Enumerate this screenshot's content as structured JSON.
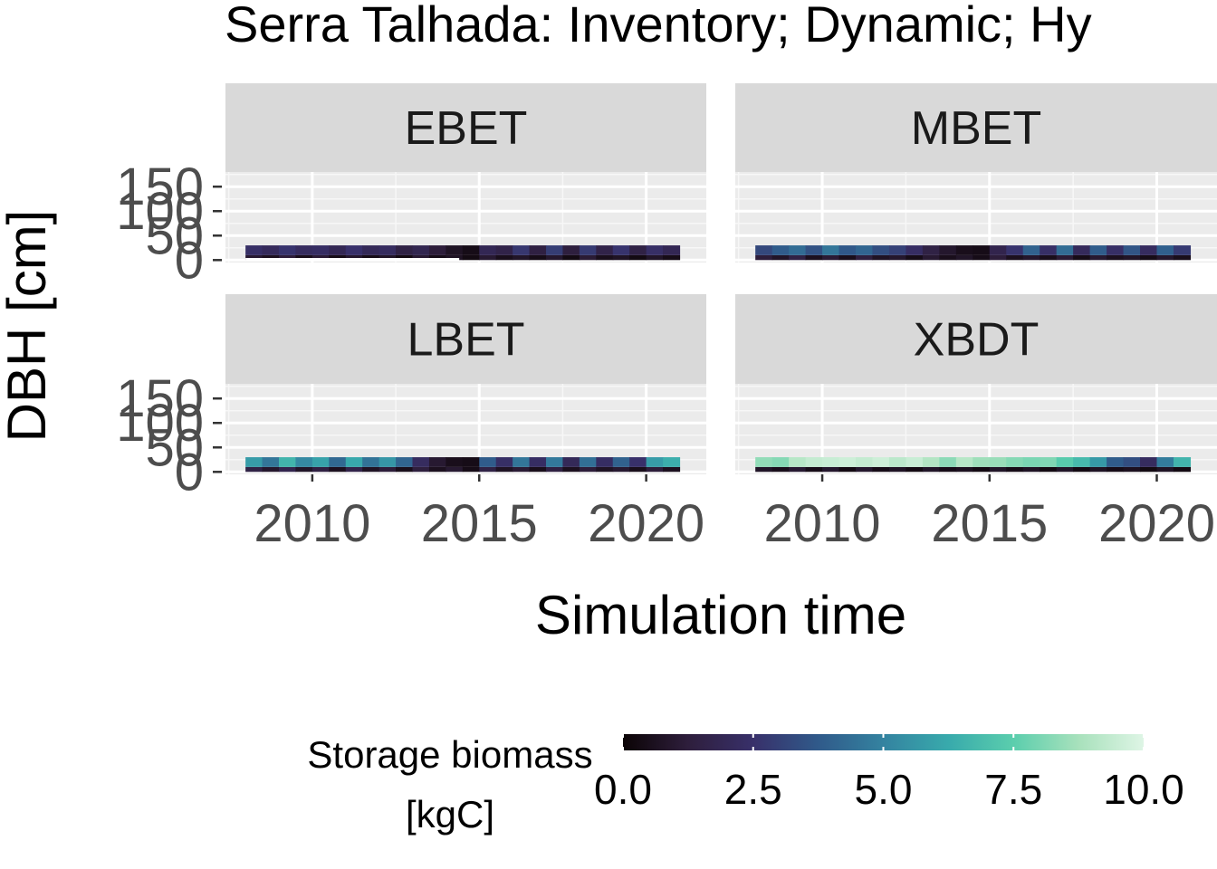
{
  "chart_data": {
    "type": "heatmap",
    "title": "Serra Talhada: Inventory; Dynamic; Hy",
    "xlabel": "Simulation time",
    "ylabel": "DBH [cm]",
    "xlim": [
      2007.4,
      2021.8
    ],
    "ylim": [
      -5,
      180
    ],
    "x_ticks": [
      2010,
      2015,
      2020
    ],
    "x_tick_labels": [
      "2010",
      "2015",
      "2020"
    ],
    "y_ticks": [
      0,
      50,
      100,
      150
    ],
    "y_tick_labels": [
      "0",
      "50",
      "100",
      "150"
    ],
    "grid": true,
    "color_scale": {
      "title_lines": [
        "Storage biomass",
        "[kgC]"
      ],
      "min": 0,
      "max": 10,
      "ticks": [
        0,
        2.5,
        5,
        7.5,
        10
      ],
      "tick_labels": [
        "0.0",
        "2.5",
        "5.0",
        "7.5",
        "10.0"
      ],
      "colors": [
        "#0b0405",
        "#2e1e3c",
        "#38306a",
        "#305a8a",
        "#3483a0",
        "#38aaac",
        "#5bcead",
        "#a8e1bc",
        "#def5e5"
      ]
    },
    "time_range": [
      2008,
      2021
    ],
    "panels": [
      {
        "name": "EBET",
        "band_ranges_cm": [
          [
            0,
            10
          ],
          [
            10,
            30
          ]
        ],
        "band_values": [
          [
            1.0,
            0.6,
            1.2,
            0.5,
            1.1,
            0.4,
            0.9,
            0.4,
            0.8,
            0.3,
            1.0,
            0.4,
            0.7,
            0.3,
            1.0,
            0.5,
            0.8,
            0.4,
            0.9,
            0.3,
            1.1,
            0.5,
            0.7,
            0.3,
            0.8,
            0.4
          ],
          [
            2.4,
            2.1,
            2.6,
            2.2,
            2.3,
            1.9,
            2.5,
            2.0,
            2.2,
            1.5,
            1.8,
            1.2,
            0.7,
            0.4,
            1.9,
            1.6,
            2.7,
            1.4,
            2.9,
            1.3,
            2.8,
            1.6,
            2.6,
            1.5,
            2.4,
            1.9
          ]
        ],
        "highlight_line": {
          "dbh_cm": 2,
          "x_from": 2008,
          "x_to": 2014.4
        }
      },
      {
        "name": "MBET",
        "band_ranges_cm": [
          [
            0,
            10
          ],
          [
            10,
            30
          ]
        ],
        "band_values": [
          [
            1.2,
            0.8,
            1.5,
            0.6,
            1.1,
            0.5,
            1.3,
            0.7,
            0.9,
            0.4,
            1.0,
            0.5,
            0.8,
            0.4,
            1.2,
            0.6,
            0.9,
            0.5,
            1.1,
            0.4,
            1.0,
            0.6,
            0.8,
            0.4,
            0.9,
            0.5
          ],
          [
            3.2,
            3.8,
            4.3,
            3.5,
            4.6,
            3.7,
            4.1,
            3.4,
            3.0,
            2.3,
            1.5,
            0.9,
            0.5,
            0.4,
            1.7,
            2.6,
            4.0,
            2.4,
            4.3,
            2.1,
            3.8,
            2.4,
            3.6,
            2.2,
            3.9,
            2.8
          ]
        ]
      },
      {
        "name": "LBET",
        "band_ranges_cm": [
          [
            0,
            10
          ],
          [
            10,
            30
          ]
        ],
        "band_values": [
          [
            1.5,
            0.9,
            1.7,
            0.8,
            1.4,
            0.6,
            1.6,
            0.7,
            1.2,
            0.5,
            1.3,
            0.6,
            1.0,
            0.4,
            1.5,
            0.7,
            1.1,
            0.5,
            1.4,
            0.6,
            1.2,
            0.7,
            1.0,
            0.5,
            1.2,
            0.6
          ],
          [
            5.8,
            4.6,
            6.6,
            5.2,
            6.0,
            4.2,
            6.2,
            4.5,
            5.6,
            4.1,
            2.2,
            1.0,
            0.5,
            0.4,
            3.8,
            2.4,
            4.6,
            2.3,
            4.7,
            2.0,
            4.4,
            2.3,
            4.0,
            2.5,
            5.8,
            6.4
          ]
        ]
      },
      {
        "name": "XBDT",
        "band_ranges_cm": [
          [
            0,
            10
          ],
          [
            10,
            30
          ]
        ],
        "band_values": [
          [
            0.8,
            0.5,
            1.0,
            0.4,
            0.9,
            0.3,
            0.9,
            0.4,
            0.7,
            0.3,
            0.8,
            0.4,
            0.6,
            0.3,
            0.8,
            0.4,
            0.7,
            0.3,
            0.8,
            0.3,
            0.7,
            0.4,
            0.6,
            0.3,
            0.7,
            0.3
          ],
          [
            8.4,
            8.2,
            9.1,
            9.4,
            9.5,
            9.6,
            9.4,
            9.6,
            9.2,
            9.5,
            9.0,
            8.3,
            9.1,
            8.6,
            8.5,
            8.2,
            8.0,
            8.1,
            7.4,
            6.8,
            5.7,
            3.8,
            3.4,
            2.2,
            4.8,
            6.6
          ]
        ]
      }
    ]
  }
}
